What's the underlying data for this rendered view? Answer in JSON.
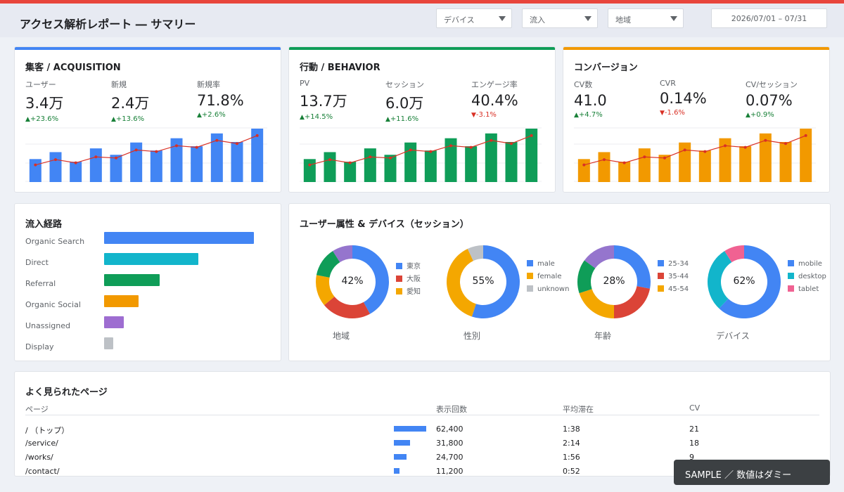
{
  "header": {
    "title": "アクセス解析レポート ― サマリー",
    "filters": [
      "デバイス",
      "流入",
      "地域"
    ],
    "date_range": "2026/07/01 – 07/31"
  },
  "colors": {
    "topbar": "#e8453c",
    "acquisition": "#4285f4",
    "behavior": "#0f9d58",
    "conversion": "#f29900",
    "line": "#d93025"
  },
  "kpi_cards": [
    {
      "title": "集客 / ACQUISITION",
      "color": "#4285f4",
      "metrics": [
        {
          "label": "ユーザー",
          "value": "3.4万",
          "delta": "+23.6%",
          "dir": "up"
        },
        {
          "label": "新規",
          "value": "2.4万",
          "delta": "+13.6%",
          "dir": "up"
        },
        {
          "label": "新規率",
          "value": "71.8%",
          "delta": "+2.6%",
          "dir": "up"
        }
      ]
    },
    {
      "title": "行動 / BEHAVIOR",
      "color": "#0f9d58",
      "metrics": [
        {
          "label": "PV",
          "value": "13.7万",
          "delta": "+14.5%",
          "dir": "up"
        },
        {
          "label": "セッション",
          "value": "6.0万",
          "delta": "+11.6%",
          "dir": "up"
        },
        {
          "label": "エンゲージ率",
          "value": "40.4%",
          "delta": "-3.1%",
          "dir": "down"
        }
      ]
    },
    {
      "title": "コンバージョン",
      "color": "#f29900",
      "metrics": [
        {
          "label": "CV数",
          "value": "41.0",
          "delta": "+4.7%",
          "dir": "up"
        },
        {
          "label": "CVR",
          "value": "0.14%",
          "delta": "-1.6%",
          "dir": "down"
        },
        {
          "label": "CV/セッション",
          "value": "0.07%",
          "delta": "+0.9%",
          "dir": "up"
        }
      ]
    }
  ],
  "trend": {
    "bars": [
      43,
      56,
      38,
      63,
      51,
      74,
      59,
      82,
      67,
      91,
      75,
      100
    ],
    "line": [
      32,
      42,
      36,
      47,
      45,
      60,
      57,
      68,
      65,
      78,
      72,
      87
    ]
  },
  "sources": {
    "title": "流入経路",
    "items": [
      {
        "label": "Organic Search",
        "value": 100,
        "color": "#4285f4"
      },
      {
        "label": "Direct",
        "value": 63,
        "color": "#12b5cb"
      },
      {
        "label": "Referral",
        "value": 37,
        "color": "#0f9d58"
      },
      {
        "label": "Organic Social",
        "value": 23,
        "color": "#f29900"
      },
      {
        "label": "Unassigned",
        "value": 13,
        "color": "#9e6dd1"
      },
      {
        "label": "Display",
        "value": 6,
        "color": "#bdc1c6"
      }
    ]
  },
  "demographics": {
    "title": "ユーザー属性 & デバイス（セッション）",
    "donuts": [
      {
        "caption": "地域",
        "center": "42%",
        "segments": [
          {
            "name": "東京",
            "value": 42,
            "color": "#4285f4",
            "legend": true
          },
          {
            "name": "大阪",
            "value": 22,
            "color": "#db4437",
            "legend": true
          },
          {
            "name": "愛知",
            "value": 14,
            "color": "#f4a700",
            "legend": true
          },
          {
            "name": "",
            "value": 13,
            "color": "#0f9d58",
            "legend": false
          },
          {
            "name": "",
            "value": 9,
            "color": "#9575cd",
            "legend": false
          }
        ]
      },
      {
        "caption": "性別",
        "center": "55%",
        "segments": [
          {
            "name": "male",
            "value": 55,
            "color": "#4285f4",
            "legend": true
          },
          {
            "name": "female",
            "value": 38,
            "color": "#f4a700",
            "legend": true
          },
          {
            "name": "unknown",
            "value": 7,
            "color": "#bdc1c6",
            "legend": true
          }
        ]
      },
      {
        "caption": "年齢",
        "center": "28%",
        "segments": [
          {
            "name": "25-34",
            "value": 28,
            "color": "#4285f4",
            "legend": true
          },
          {
            "name": "35-44",
            "value": 22,
            "color": "#db4437",
            "legend": true
          },
          {
            "name": "45-54",
            "value": 20,
            "color": "#f4a700",
            "legend": true
          },
          {
            "name": "",
            "value": 15,
            "color": "#0f9d58",
            "legend": false
          },
          {
            "name": "",
            "value": 15,
            "color": "#9575cd",
            "legend": false
          }
        ]
      },
      {
        "caption": "デバイス",
        "center": "62%",
        "segments": [
          {
            "name": "mobile",
            "value": 62,
            "color": "#4285f4",
            "legend": true
          },
          {
            "name": "desktop",
            "value": 29,
            "color": "#12b5cb",
            "legend": true
          },
          {
            "name": "tablet",
            "value": 9,
            "color": "#f06292",
            "legend": true
          }
        ]
      }
    ]
  },
  "pages": {
    "title": "よく見られたページ",
    "columns": [
      "ページ",
      "表示回数",
      "平均滞在",
      "CV"
    ],
    "rows": [
      {
        "page": "/ （トップ）",
        "views": "62,400",
        "views_num": 62400,
        "time": "1:38",
        "cv": "21"
      },
      {
        "page": "/service/",
        "views": "31,800",
        "views_num": 31800,
        "time": "2:14",
        "cv": "18"
      },
      {
        "page": "/works/",
        "views": "24,700",
        "views_num": 24700,
        "time": "1:56",
        "cv": "9"
      },
      {
        "page": "/contact/",
        "views": "11,200",
        "views_num": 11200,
        "time": "0:52",
        "cv": ""
      }
    ]
  },
  "badge": "SAMPLE ／ 数値はダミー"
}
